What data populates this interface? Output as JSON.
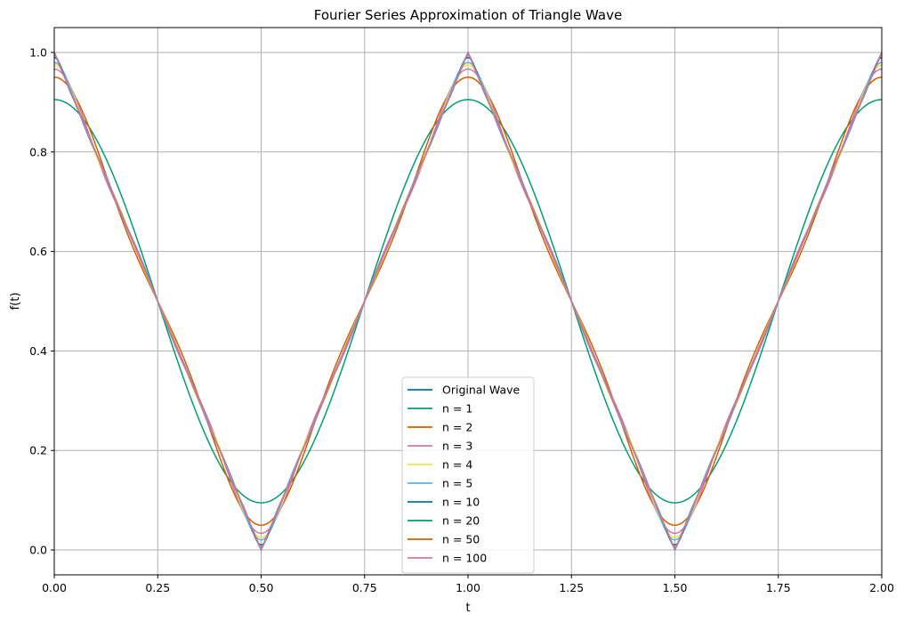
{
  "chart_data": {
    "type": "line",
    "title": "Fourier Series Approximation of Triangle Wave",
    "xlabel": "t",
    "ylabel": "f(t)",
    "xlim": [
      0,
      2
    ],
    "ylim": [
      -0.05,
      1.05
    ],
    "xticks": [
      0,
      0.25,
      0.5,
      0.75,
      1.0,
      1.25,
      1.5,
      1.75,
      2.0
    ],
    "xtick_labels": [
      "0.00",
      "0.25",
      "0.50",
      "0.75",
      "1.00",
      "1.25",
      "1.50",
      "1.75",
      "2.00"
    ],
    "yticks": [
      0.0,
      0.2,
      0.4,
      0.6,
      0.8,
      1.0
    ],
    "ytick_labels": [
      "0.0",
      "0.2",
      "0.4",
      "0.6",
      "0.8",
      "1.0"
    ],
    "grid": true,
    "legend_position": "lower center",
    "function": "triangle wave with period 1, f(0)=1, f(0.5)=0; Fourier partial sums 0.5 + sum over odd k of (4/(pi^2 k^2)) cos(2 pi k t)",
    "series": [
      {
        "name": "Original Wave",
        "harmonics": 0,
        "color": "#0072b2",
        "x": [
          0,
          0.5,
          1.0,
          1.5,
          2.0
        ],
        "y": [
          1.0,
          0.0,
          1.0,
          0.0,
          1.0
        ]
      },
      {
        "name": "n = 1",
        "harmonics": 1,
        "color": "#009e73",
        "x": [
          0,
          0.25,
          0.5,
          0.75,
          1.0,
          1.25,
          1.5,
          1.75,
          2.0
        ],
        "y": [
          0.905,
          0.5,
          0.095,
          0.5,
          0.905,
          0.5,
          0.095,
          0.5,
          0.905
        ]
      },
      {
        "name": "n = 2",
        "harmonics": 2,
        "color": "#d55e00",
        "x": [
          0,
          0.25,
          0.5,
          0.75,
          1.0,
          1.25,
          1.5,
          1.75,
          2.0
        ],
        "y": [
          0.905,
          0.5,
          0.095,
          0.5,
          0.905,
          0.5,
          0.095,
          0.5,
          0.905
        ]
      },
      {
        "name": "n = 3",
        "harmonics": 3,
        "color": "#cc79a7",
        "x": [
          0,
          0.25,
          0.5,
          0.75,
          1.0,
          1.25,
          1.5,
          1.75,
          2.0
        ],
        "y": [
          0.95,
          0.5,
          0.05,
          0.5,
          0.95,
          0.5,
          0.05,
          0.5,
          0.95
        ]
      },
      {
        "name": "n = 4",
        "harmonics": 4,
        "color": "#f0e442",
        "x": [
          0,
          0.25,
          0.5,
          0.75,
          1.0,
          1.25,
          1.5,
          1.75,
          2.0
        ],
        "y": [
          0.95,
          0.5,
          0.05,
          0.5,
          0.95,
          0.5,
          0.05,
          0.5,
          0.95
        ]
      },
      {
        "name": "n = 5",
        "harmonics": 5,
        "color": "#56b4e9",
        "x": [
          0,
          0.25,
          0.5,
          0.75,
          1.0,
          1.25,
          1.5,
          1.75,
          2.0
        ],
        "y": [
          0.966,
          0.5,
          0.034,
          0.5,
          0.966,
          0.5,
          0.034,
          0.5,
          0.966
        ]
      },
      {
        "name": "n = 10",
        "harmonics": 10,
        "color": "#0072b2",
        "x": [
          0,
          0.25,
          0.5,
          0.75,
          1.0,
          1.25,
          1.5,
          1.75,
          2.0
        ],
        "y": [
          0.98,
          0.5,
          0.02,
          0.5,
          0.98,
          0.5,
          0.02,
          0.5,
          0.98
        ]
      },
      {
        "name": "n = 20",
        "harmonics": 20,
        "color": "#009e73",
        "x": [
          0,
          0.25,
          0.5,
          0.75,
          1.0,
          1.25,
          1.5,
          1.75,
          2.0
        ],
        "y": [
          0.99,
          0.5,
          0.01,
          0.5,
          0.99,
          0.5,
          0.01,
          0.5,
          0.99
        ]
      },
      {
        "name": "n = 50",
        "harmonics": 50,
        "color": "#d55e00",
        "x": [
          0,
          0.25,
          0.5,
          0.75,
          1.0,
          1.25,
          1.5,
          1.75,
          2.0
        ],
        "y": [
          0.996,
          0.5,
          0.004,
          0.5,
          0.996,
          0.5,
          0.004,
          0.5,
          0.996
        ]
      },
      {
        "name": "n = 100",
        "harmonics": 100,
        "color": "#cc79a7",
        "x": [
          0,
          0.25,
          0.5,
          0.75,
          1.0,
          1.25,
          1.5,
          1.75,
          2.0
        ],
        "y": [
          0.998,
          0.5,
          0.002,
          0.5,
          0.998,
          0.5,
          0.002,
          0.5,
          0.998
        ]
      }
    ]
  }
}
